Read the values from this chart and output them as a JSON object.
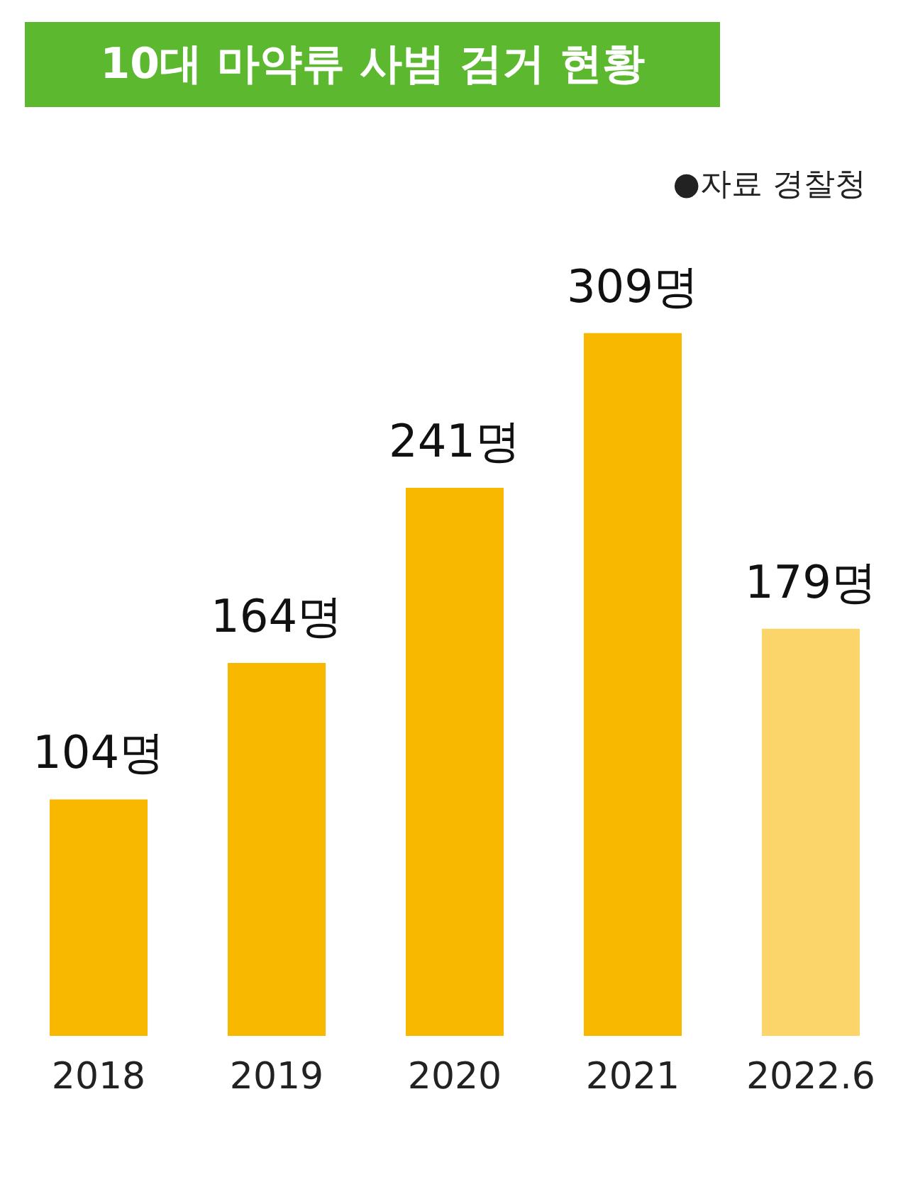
{
  "chart_data": {
    "type": "bar",
    "title": "10대 마약류 사범 검거 현황",
    "annotations": [
      "●자료 경찰청"
    ],
    "categories": [
      "2018",
      "2019",
      "2020",
      "2021",
      "2022.6"
    ],
    "values": [
      104,
      164,
      241,
      309,
      179
    ],
    "colors": [
      "#f9b800",
      "#f9b800",
      "#f9b800",
      "#f9b800",
      "#fbd46a"
    ],
    "data_labels": true,
    "value_labels": [
      "104명",
      "164명",
      "241명",
      "309명",
      "179명"
    ],
    "grid": false
  }
}
